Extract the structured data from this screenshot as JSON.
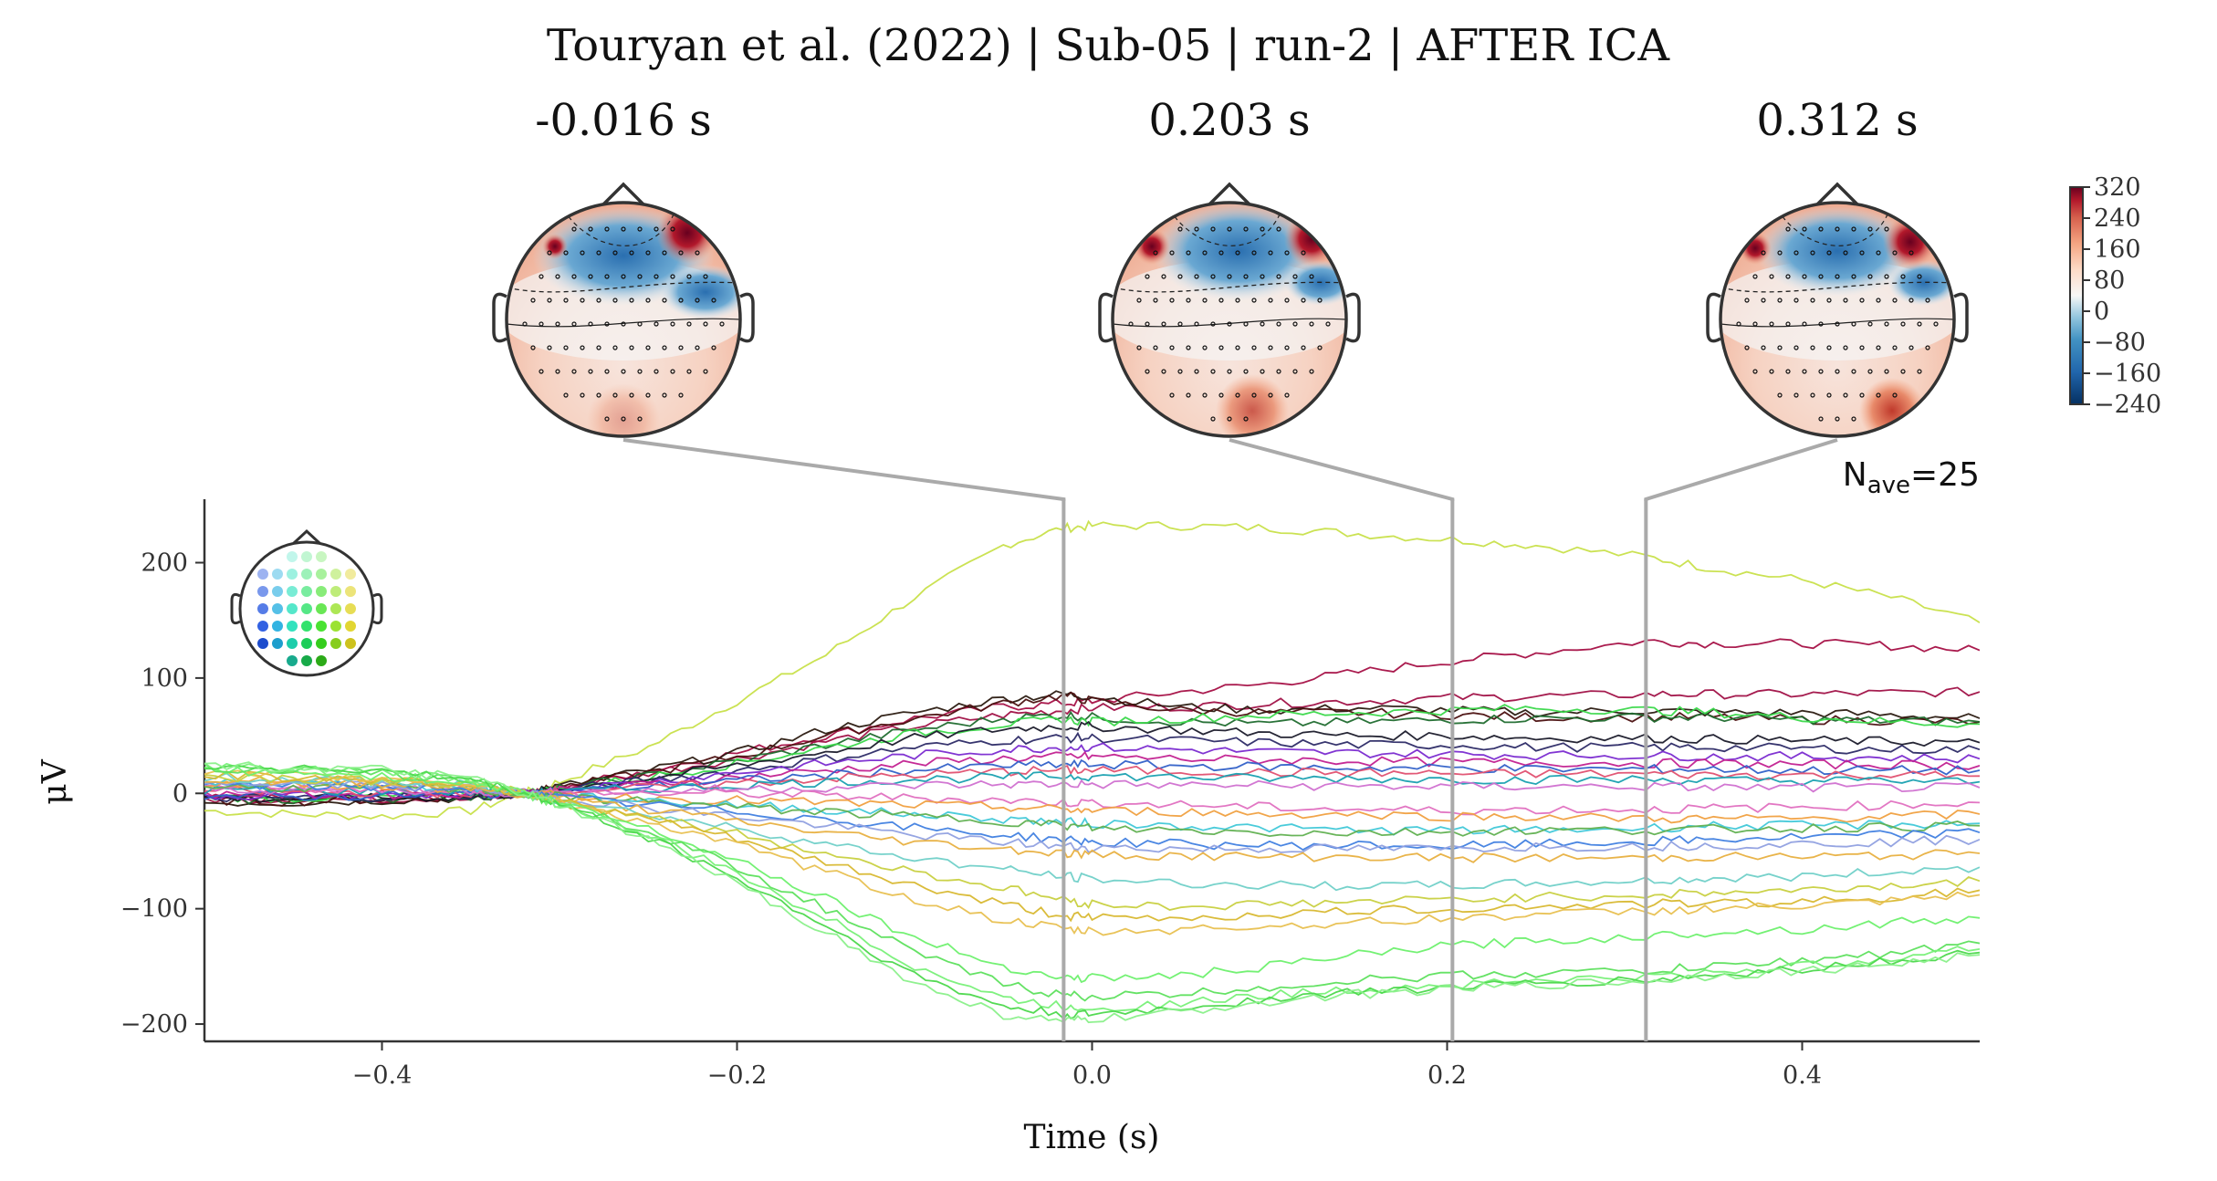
{
  "chart_data": {
    "type": "line",
    "title": "Touryan et al. (2022) | Sub-05 | run-2 | AFTER ICA",
    "xlabel": "Time (s)",
    "ylabel": "μV",
    "xlim": [
      -0.5,
      0.5
    ],
    "ylim": [
      -215,
      255
    ],
    "xticks": [
      -0.4,
      -0.2,
      0.0,
      0.2,
      0.4
    ],
    "xtick_labels": [
      "−0.4",
      "−0.2",
      "0.0",
      "0.2",
      "0.4"
    ],
    "yticks": [
      -200,
      -100,
      0,
      100,
      200
    ],
    "ytick_labels": [
      "−200",
      "−100",
      "0",
      "100",
      "200"
    ],
    "annotation": {
      "N": "N",
      "sub": "ave",
      "eq": "=25"
    },
    "topomap_times": [
      -0.016,
      0.203,
      0.312
    ],
    "topomap_titles": [
      "-0.016 s",
      "0.203 s",
      "0.312 s"
    ],
    "colorbar": {
      "colormap": "RdBu_r",
      "range": [
        -240,
        320
      ],
      "ticks": [
        "320",
        "240",
        "160",
        "80",
        "0",
        "−80",
        "−160",
        "−240"
      ],
      "tick_values": [
        320,
        240,
        160,
        80,
        0,
        -80,
        -160,
        -240
      ]
    },
    "legend": "sensor-position head inset (top-left), spatial colors",
    "x_samples": [
      -0.5,
      -0.45,
      -0.4,
      -0.35,
      -0.32,
      -0.3,
      -0.25,
      -0.2,
      -0.15,
      -0.1,
      -0.05,
      -0.016,
      0.0,
      0.05,
      0.1,
      0.15,
      0.203,
      0.25,
      0.312,
      0.35,
      0.4,
      0.45,
      0.5
    ],
    "series": [
      {
        "color": "#c8e04a",
        "values": [
          -15,
          -18,
          -20,
          -15,
          0,
          10,
          40,
          80,
          120,
          170,
          215,
          230,
          232,
          232,
          230,
          225,
          220,
          215,
          205,
          195,
          185,
          170,
          148
        ]
      },
      {
        "color": "#a50f44",
        "values": [
          -5,
          -5,
          -5,
          -3,
          0,
          5,
          20,
          35,
          50,
          65,
          75,
          78,
          80,
          88,
          95,
          105,
          115,
          122,
          132,
          130,
          130,
          128,
          124
        ]
      },
      {
        "color": "#a01046",
        "values": [
          -5,
          -5,
          -5,
          -3,
          0,
          5,
          18,
          30,
          45,
          58,
          68,
          72,
          74,
          75,
          78,
          80,
          83,
          84,
          86,
          86,
          86,
          87,
          88
        ]
      },
      {
        "color": "#2a1a10",
        "values": [
          -8,
          -8,
          -6,
          -4,
          0,
          6,
          20,
          35,
          55,
          70,
          82,
          86,
          84,
          75,
          72,
          74,
          72,
          70,
          72,
          70,
          70,
          68,
          65
        ]
      },
      {
        "color": "#4b1010",
        "values": [
          -6,
          -7,
          -5,
          -3,
          0,
          5,
          18,
          32,
          50,
          65,
          78,
          85,
          80,
          72,
          70,
          70,
          68,
          66,
          66,
          66,
          64,
          63,
          62
        ]
      },
      {
        "color": "#1f6b2e",
        "values": [
          -5,
          -6,
          -4,
          -3,
          0,
          4,
          15,
          28,
          42,
          55,
          65,
          68,
          66,
          62,
          60,
          62,
          64,
          65,
          66,
          66,
          64,
          63,
          62
        ]
      },
      {
        "color": "#3ad84a",
        "values": [
          -3,
          -4,
          -3,
          -2,
          0,
          4,
          14,
          26,
          40,
          52,
          60,
          64,
          62,
          65,
          68,
          70,
          72,
          74,
          72,
          70,
          66,
          62,
          60
        ]
      },
      {
        "color": "#1a1a2a",
        "values": [
          -4,
          -5,
          -4,
          -3,
          0,
          4,
          13,
          24,
          36,
          48,
          56,
          58,
          58,
          55,
          52,
          50,
          50,
          48,
          48,
          47,
          46,
          45,
          44
        ]
      },
      {
        "color": "#2c2a66",
        "values": [
          -4,
          -4,
          -3,
          -2,
          0,
          3,
          11,
          20,
          30,
          40,
          46,
          48,
          48,
          46,
          44,
          42,
          42,
          40,
          40,
          40,
          39,
          38,
          38
        ]
      },
      {
        "color": "#7a2ad0",
        "values": [
          -2,
          -2,
          -2,
          -1,
          0,
          3,
          10,
          18,
          26,
          33,
          38,
          40,
          40,
          38,
          36,
          35,
          34,
          33,
          33,
          32,
          32,
          31,
          30
        ]
      },
      {
        "color": "#c22090",
        "values": [
          0,
          -1,
          -1,
          0,
          0,
          2,
          8,
          14,
          20,
          26,
          30,
          32,
          32,
          30,
          29,
          28,
          27,
          27,
          26,
          26,
          25,
          25,
          24
        ]
      },
      {
        "color": "#3060c8",
        "values": [
          -2,
          -3,
          -2,
          -1,
          0,
          2,
          6,
          11,
          16,
          20,
          24,
          25,
          25,
          24,
          23,
          22,
          22,
          21,
          21,
          21,
          20,
          20,
          20
        ]
      },
      {
        "color": "#e05070",
        "values": [
          2,
          1,
          1,
          0,
          0,
          2,
          5,
          9,
          13,
          16,
          19,
          20,
          20,
          19,
          18,
          18,
          17,
          17,
          17,
          16,
          16,
          16,
          15
        ]
      },
      {
        "color": "#18a0b0",
        "values": [
          3,
          2,
          2,
          1,
          0,
          1,
          4,
          7,
          10,
          12,
          14,
          15,
          15,
          14,
          13,
          13,
          12,
          12,
          12,
          11,
          11,
          11,
          10
        ]
      },
      {
        "color": "#d070d0",
        "values": [
          4,
          3,
          3,
          2,
          0,
          1,
          2,
          4,
          5,
          7,
          8,
          8,
          8,
          7,
          7,
          6,
          6,
          6,
          6,
          5,
          5,
          5,
          5
        ]
      },
      {
        "color": "#e070c0",
        "values": [
          5,
          4,
          4,
          3,
          0,
          0,
          0,
          0,
          -2,
          -4,
          -6,
          -8,
          -8,
          -10,
          -12,
          -14,
          -15,
          -14,
          -14,
          -13,
          -12,
          -10,
          -8
        ]
      },
      {
        "color": "#f0a040",
        "values": [
          8,
          7,
          6,
          4,
          0,
          -2,
          -4,
          -6,
          -8,
          -10,
          -12,
          -14,
          -15,
          -16,
          -18,
          -18,
          -20,
          -20,
          -22,
          -22,
          -22,
          -20,
          -18
        ]
      },
      {
        "color": "#40c8d8",
        "values": [
          10,
          8,
          8,
          5,
          0,
          -3,
          -6,
          -10,
          -14,
          -18,
          -22,
          -25,
          -26,
          -28,
          -30,
          -32,
          -32,
          -32,
          -30,
          -28,
          -28,
          -27,
          -26
        ]
      },
      {
        "color": "#60b050",
        "values": [
          6,
          5,
          5,
          3,
          0,
          -3,
          -7,
          -12,
          -16,
          -20,
          -24,
          -28,
          -30,
          -32,
          -34,
          -34,
          -33,
          -32,
          -32,
          -31,
          -30,
          -29,
          -28
        ]
      },
      {
        "color": "#4080e0",
        "values": [
          8,
          6,
          6,
          4,
          0,
          -4,
          -10,
          -16,
          -22,
          -30,
          -36,
          -40,
          -42,
          -44,
          -45,
          -45,
          -46,
          -44,
          -42,
          -40,
          -38,
          -36,
          -34
        ]
      },
      {
        "color": "#90a0e0",
        "values": [
          10,
          8,
          7,
          5,
          0,
          -4,
          -12,
          -20,
          -28,
          -36,
          -42,
          -46,
          -47,
          -48,
          -48,
          -48,
          -48,
          -46,
          -46,
          -45,
          -44,
          -42,
          -40
        ]
      },
      {
        "color": "#e8b040",
        "values": [
          12,
          10,
          9,
          6,
          0,
          -5,
          -14,
          -24,
          -34,
          -42,
          -48,
          -52,
          -53,
          -54,
          -55,
          -55,
          -56,
          -56,
          -56,
          -55,
          -55,
          -54,
          -52
        ]
      },
      {
        "color": "#70d0c8",
        "values": [
          14,
          12,
          10,
          7,
          0,
          -6,
          -18,
          -30,
          -44,
          -56,
          -66,
          -72,
          -74,
          -78,
          -80,
          -80,
          -80,
          -78,
          -76,
          -74,
          -72,
          -68,
          -64
        ]
      },
      {
        "color": "#c8d040",
        "values": [
          15,
          13,
          11,
          8,
          0,
          -6,
          -20,
          -35,
          -52,
          -68,
          -82,
          -92,
          -96,
          -98,
          -96,
          -94,
          -92,
          -90,
          -88,
          -86,
          -84,
          -80,
          -76
        ]
      },
      {
        "color": "#d8b830",
        "values": [
          16,
          14,
          12,
          8,
          0,
          -7,
          -22,
          -40,
          -60,
          -80,
          -96,
          -106,
          -108,
          -108,
          -105,
          -102,
          -100,
          -98,
          -96,
          -95,
          -94,
          -90,
          -84
        ]
      },
      {
        "color": "#e8c050",
        "values": [
          17,
          15,
          13,
          9,
          0,
          -8,
          -25,
          -45,
          -68,
          -92,
          -110,
          -118,
          -120,
          -118,
          -115,
          -112,
          -108,
          -105,
          -102,
          -100,
          -98,
          -94,
          -88
        ]
      },
      {
        "color": "#6df06d",
        "values": [
          20,
          18,
          15,
          10,
          0,
          -8,
          -30,
          -58,
          -90,
          -125,
          -150,
          -160,
          -160,
          -158,
          -150,
          -140,
          -132,
          -128,
          -124,
          -120,
          -118,
          -112,
          -108
        ]
      },
      {
        "color": "#5de05d",
        "values": [
          22,
          20,
          17,
          11,
          0,
          -9,
          -33,
          -64,
          -100,
          -138,
          -165,
          -175,
          -176,
          -174,
          -168,
          -162,
          -158,
          -156,
          -154,
          -150,
          -145,
          -138,
          -130
        ]
      },
      {
        "color": "#78f078",
        "values": [
          23,
          21,
          18,
          12,
          0,
          -10,
          -36,
          -70,
          -108,
          -150,
          -178,
          -185,
          -186,
          -182,
          -175,
          -170,
          -166,
          -162,
          -160,
          -155,
          -150,
          -142,
          -135
        ]
      },
      {
        "color": "#4cd84c",
        "values": [
          24,
          22,
          19,
          12,
          0,
          -10,
          -38,
          -74,
          -115,
          -158,
          -185,
          -192,
          -192,
          -186,
          -178,
          -172,
          -168,
          -165,
          -162,
          -158,
          -152,
          -145,
          -138
        ]
      },
      {
        "color": "#8af08a",
        "values": [
          25,
          22,
          20,
          13,
          0,
          -11,
          -40,
          -78,
          -120,
          -165,
          -192,
          -198,
          -196,
          -190,
          -180,
          -174,
          -170,
          -166,
          -163,
          -158,
          -154,
          -148,
          -140
        ]
      }
    ]
  }
}
